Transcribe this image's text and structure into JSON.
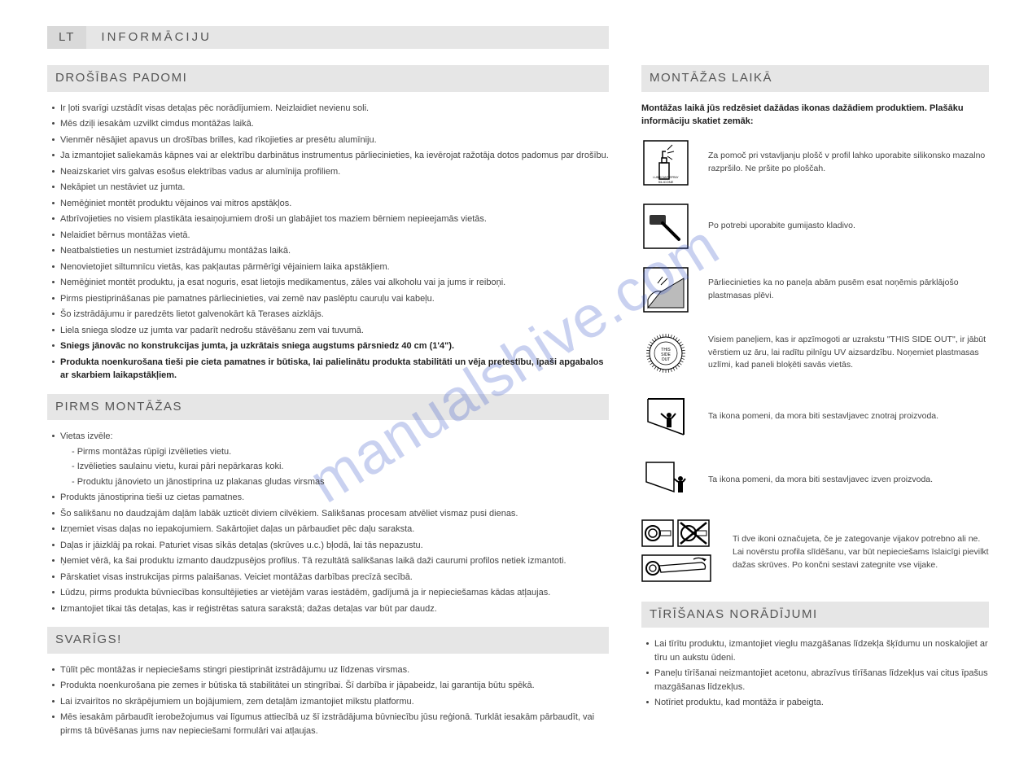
{
  "watermark": "manualshive.com",
  "langBar": {
    "code": "LT",
    "title": "INFORMĀCIJU"
  },
  "left": {
    "safety": {
      "heading": "DROŠĪBAS PADOMI",
      "items": [
        {
          "text": "Ir ļoti svarīgi uzstādīt visas detaļas pēc norādījumiem. Neizlaidiet nevienu soli."
        },
        {
          "text": "Mēs dziļi iesakām uzvilkt cimdus montāžas laikā."
        },
        {
          "text": "Vienmēr nēsājiet apavus un drošības brilles, kad rīkojieties ar presētu alumīniju."
        },
        {
          "text": "Ja izmantojiet saliekamās kāpnes vai ar elektrību darbinātus instrumentus pārliecinieties, ka ievērojat ražotāja dotos padomus par drošību."
        },
        {
          "text": "Neaizskariet virs galvas esošus elektrības vadus ar alumīnija profiliem."
        },
        {
          "text": "Nekāpiet un nestāviet uz jumta."
        },
        {
          "text": "Nemēģiniet montēt produktu vējainos vai mitros apstākļos."
        },
        {
          "text": "Atbrīvojieties no visiem plastikāta iesaiņojumiem droši un glabājiet tos maziem bērniem nepieejamās vietās."
        },
        {
          "text": "Nelaidiet bērnus montāžas vietā."
        },
        {
          "text": "Neatbalstieties un nestumiet izstrādājumu montāžas laikā."
        },
        {
          "text": "Nenovietojiet siltumnīcu vietās, kas pakļautas pārmērīgi vējainiem laika apstākļiem."
        },
        {
          "text": "Nemēģiniet montēt produktu, ja esat noguris, esat lietojis medikamentus, zāles vai alkoholu vai ja jums ir reiboņi."
        },
        {
          "text": "Pirms piestiprināšanas pie pamatnes pārliecinieties, vai zemē nav paslēptu cauruļu vai kabeļu."
        },
        {
          "text": "Šo izstrādājumu ir paredzēts lietot galvenokārt kā Terases aizklājs."
        },
        {
          "text": "Liela sniega slodze uz jumta var padarīt nedrošu stāvēšanu zem vai tuvumā."
        },
        {
          "text": "Sniegs jānovāc no konstrukcijas jumta, ja uzkrātais sniega augstums pārsniedz 40 cm (1'4\").",
          "bold": true
        },
        {
          "text": "Produkta noenkurošana tieši pie cieta pamatnes ir būtiska, lai palielinātu produkta stabilitāti un vēja pretestību, īpaši apgabalos ar skarbiem laikapstākļiem.",
          "bold": true
        }
      ]
    },
    "before": {
      "heading": "PIRMS MONTĀŽAS",
      "items": [
        {
          "text": "Vietas izvēle:",
          "sub": [
            "- Pirms montāžas rūpīgi izvēlieties vietu.",
            "- Izvēlieties saulainu vietu, kurai pāri nepārkaras koki.",
            "- Produktu jānovieto un jānostiprina uz plakanas gludas virsmas"
          ]
        },
        {
          "text": "Produkts jānostiprina tieši uz cietas pamatnes."
        },
        {
          "text": "Šo salikšanu no daudzajām daļām labāk uzticēt diviem cilvēkiem. Salikšanas procesam atvēliet vismaz pusi dienas."
        },
        {
          "text": "Izņemiet visas daļas no iepakojumiem. Sakārtojiet daļas un pārbaudiet pēc daļu saraksta."
        },
        {
          "text": "Daļas ir jāizklāj pa rokai. Paturiet visas sīkās detaļas (skrūves u.c.) bļodā, lai tās nepazustu."
        },
        {
          "text": "Ņemiet vērā, ka šai produktu izmanto daudzpusējos profilus. Tā rezultātā salikšanas laikā daži caurumi profilos netiek izmantoti."
        },
        {
          "text": "Pārskatiet visas instrukcijas pirms palaišanas. Veiciet montāžas darbības precīzā secībā."
        },
        {
          "text": "Lūdzu, pirms produkta būvniecības konsultējieties ar vietējām varas iestādēm, gadījumā ja ir nepieciešamas kādas atļaujas."
        },
        {
          "text": "Izmantojiet tikai tās detaļas, kas ir reģistrētas satura sarakstā; dažas detaļas var būt par daudz."
        }
      ]
    },
    "important": {
      "heading": "SVARĪGS!",
      "items": [
        {
          "text": "Tūlīt pēc montāžas ir nepieciešams stingri piestiprināt izstrādājumu uz līdzenas virsmas."
        },
        {
          "text": "Produkta noenkurošana pie zemes ir būtiska tā stabilitātei un stingrībai. Šī darbība ir jāpabeidz, lai garantija būtu spēkā."
        },
        {
          "text": "Lai izvairītos no skrāpējumiem un bojājumiem, zem detaļām izmantojiet mīkstu platformu."
        },
        {
          "text": "Mēs iesakām pārbaudīt ierobežojumus vai līgumus attiecībā uz šī izstrādājuma būvniecību jūsu reģionā. Turklāt iesakām pārbaudīt, vai pirms tā būvēšanas jums nav nepieciešami formulāri vai atļaujas."
        }
      ]
    }
  },
  "right": {
    "assembly": {
      "heading": "MONTĀŽAS LAIKĀ",
      "intro": "Montāžas laikā jūs redzēsiet dažādas ikonas dažādiem produktiem. Plašāku informāciju skatiet zemāk:",
      "rows": [
        {
          "icon": "spray",
          "text": "Za pomoč pri vstavljanju plošč v profil lahko uporabite silikonsko mazalno razpršilo. Ne pršite po ploščah."
        },
        {
          "icon": "hammer",
          "text": "Po potrebi uporabite gumijasto kladivo."
        },
        {
          "icon": "peel",
          "text": "Pārliecinieties ka no paneļa abām pusēm esat noņēmis pārklājošo plastmasas plēvi."
        },
        {
          "icon": "thisside",
          "text": "Visiem paneļiem, kas ir apzīmogoti ar uzrakstu \"THIS SIDE OUT\", ir jābūt vērstiem uz āru, lai radītu pilnīgu UV aizsardzību. Noņemiet plastmasas uzlīmi, kad paneli bloķēti savās vietās."
        },
        {
          "icon": "inside",
          "text": "Ta ikona pomeni, da mora biti sestavljavec znotraj proizvoda."
        },
        {
          "icon": "outside",
          "text": "Ta ikona pomeni, da mora biti sestavljavec izven proizvoda."
        },
        {
          "icon": "screws",
          "text": "Ti dve ikoni označujeta, če je zategovanje vijakov potrebno ali ne. Lai novērstu profila slīdēšanu, var būt nepieciešams īslaicīgi pievilkt dažas skrūves. Po končni sestavi zategnite vse vijake."
        }
      ]
    },
    "cleaning": {
      "heading": "TĪRĪŠANAS NORĀDĪJUMI",
      "items": [
        {
          "text": "Lai tīrītu produktu, izmantojiet vieglu mazgāšanas līdzekļa šķīdumu un noskalojiet ar tīru un aukstu ūdeni."
        },
        {
          "text": "Paneļu tīrīšanai neizmantojiet acetonu, abrazīvus tīrīšanas līdzekļus vai citus īpašus mazgāšanas līdzekļus."
        },
        {
          "text": "Notīriet produktu, kad montāža ir pabeigta."
        }
      ]
    }
  }
}
